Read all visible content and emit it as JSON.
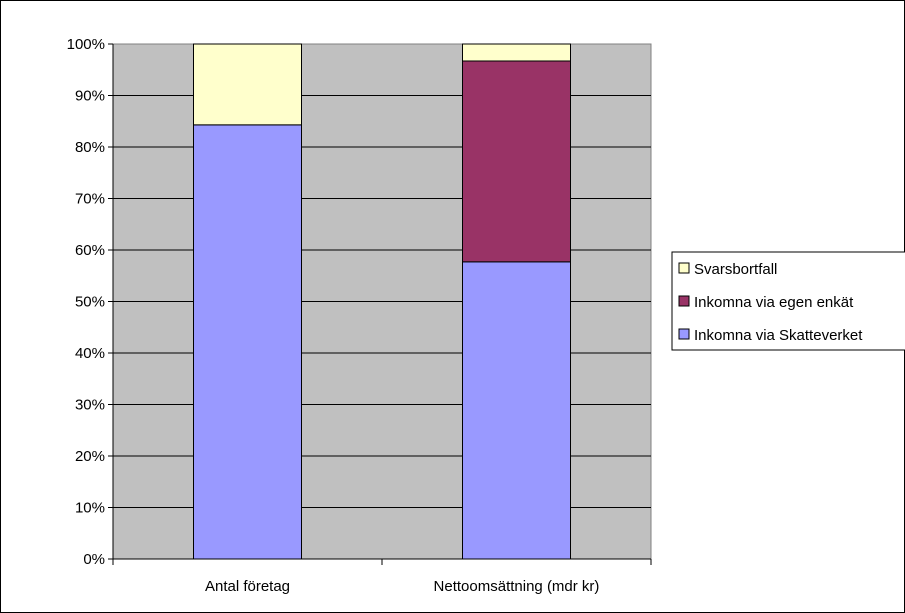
{
  "chart_data": {
    "type": "bar",
    "stacked": true,
    "categories": [
      "Antal företag",
      "Nettoomsättning (mdr kr)"
    ],
    "series": [
      {
        "name": "Inkomna via Skatteverket",
        "values": [
          84.3,
          57.7
        ],
        "color": "#9999ff"
      },
      {
        "name": "Inkomna via egen enkät",
        "values": [
          0,
          39.0
        ],
        "color": "#993366"
      },
      {
        "name": "Svarsbortfall",
        "values": [
          15.7,
          3.3
        ],
        "color": "#ffffcc"
      }
    ],
    "ylim": [
      0,
      100
    ],
    "yticks": [
      "0%",
      "10%",
      "20%",
      "30%",
      "40%",
      "50%",
      "60%",
      "70%",
      "80%",
      "90%",
      "100%"
    ],
    "grid": true,
    "plot_background": "#c0c0c0",
    "legend": {
      "placement": "right",
      "entries": [
        "Svarsbortfall",
        "Inkomna via egen enkät",
        "Inkomna via Skatteverket"
      ]
    },
    "title": "",
    "xlabel": "",
    "ylabel": ""
  }
}
